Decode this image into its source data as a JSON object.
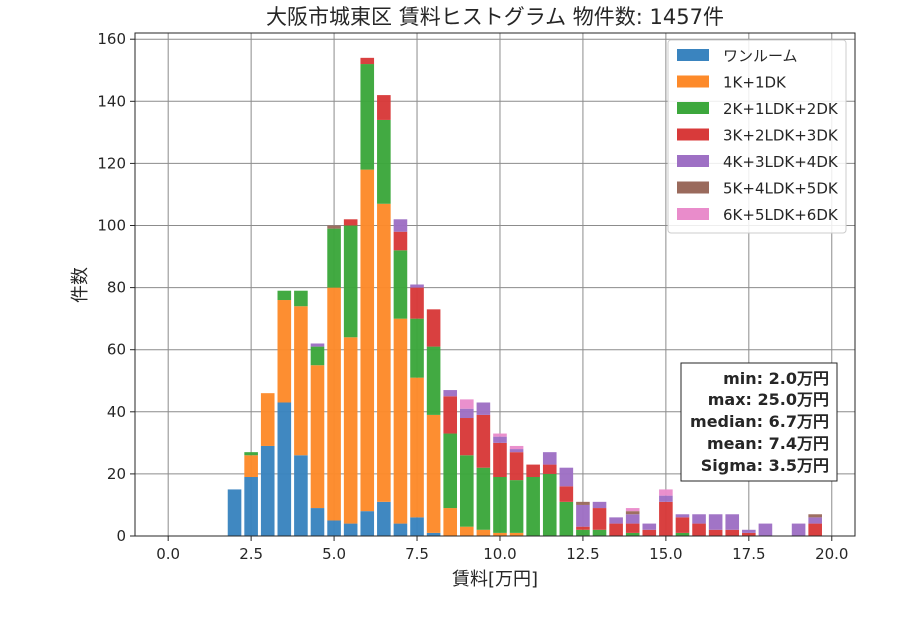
{
  "chart_data": {
    "type": "bar",
    "stacked": true,
    "title": "大阪市城東区 賃料ヒストグラム 物件数: 1457件",
    "xlabel": "賃料[万円]",
    "ylabel": "件数",
    "xlim": [
      -1.0,
      20.7
    ],
    "ylim": [
      0,
      162
    ],
    "xticks": [
      "0.0",
      "2.5",
      "5.0",
      "7.5",
      "10.0",
      "12.5",
      "15.0",
      "17.5",
      "20.0"
    ],
    "xtick_values": [
      0,
      2.5,
      5,
      7.5,
      10,
      12.5,
      15,
      17.5,
      20
    ],
    "yticks": [
      0,
      20,
      40,
      60,
      80,
      100,
      120,
      140,
      160
    ],
    "grid": true,
    "legend_position": "top-right",
    "bin_starts": [
      1.75,
      2.25,
      2.75,
      3.25,
      3.75,
      4.25,
      4.75,
      5.25,
      5.75,
      6.25,
      6.75,
      7.25,
      7.75,
      8.25,
      8.75,
      9.25,
      9.75,
      10.25,
      10.75,
      11.25,
      11.75,
      12.25,
      12.75,
      13.25,
      13.75,
      14.25,
      14.75,
      15.25,
      15.75,
      16.25,
      16.75,
      17.25,
      17.75,
      18.25,
      18.75,
      19.25
    ],
    "bin_width": 0.5,
    "series": [
      {
        "name": "ワンルーム",
        "color": "#3a84bf",
        "values": [
          15,
          19,
          29,
          43,
          26,
          9,
          5,
          4,
          8,
          11,
          4,
          6,
          1,
          0,
          0,
          0,
          0,
          0,
          0,
          0,
          0,
          0,
          0,
          0,
          0,
          0,
          0,
          0,
          0,
          0,
          0,
          0,
          0,
          0,
          0,
          0
        ]
      },
      {
        "name": "1K+1DK",
        "color": "#fd8a2a",
        "values": [
          0,
          7,
          17,
          33,
          48,
          46,
          75,
          60,
          110,
          96,
          66,
          45,
          38,
          9,
          3,
          2,
          1,
          1,
          0,
          0,
          0,
          0,
          0,
          0,
          0,
          0,
          0,
          0,
          0,
          0,
          0,
          0,
          0,
          0,
          0,
          0
        ]
      },
      {
        "name": "2K+1LDK+2DK",
        "color": "#3ca73c",
        "values": [
          0,
          1,
          0,
          3,
          5,
          6,
          19,
          36,
          34,
          27,
          22,
          19,
          22,
          24,
          23,
          20,
          18,
          17,
          19,
          20,
          11,
          2,
          2,
          0,
          1,
          0,
          0,
          1,
          0,
          0,
          0,
          0,
          0,
          0,
          0,
          0
        ]
      },
      {
        "name": "3K+2LDK+3DK",
        "color": "#d83a3a",
        "values": [
          0,
          0,
          0,
          0,
          0,
          0,
          0,
          2,
          2,
          8,
          6,
          10,
          12,
          12,
          12,
          17,
          11,
          9,
          4,
          3,
          5,
          1,
          7,
          4,
          3,
          2,
          11,
          5,
          4,
          2,
          2,
          1,
          0,
          0,
          0,
          4
        ]
      },
      {
        "name": "4K+3LDK+4DK",
        "color": "#9e70c4",
        "values": [
          0,
          0,
          0,
          0,
          0,
          1,
          0,
          0,
          0,
          0,
          4,
          1,
          0,
          2,
          3,
          4,
          2,
          1,
          0,
          4,
          6,
          7,
          2,
          2,
          3,
          2,
          2,
          1,
          3,
          5,
          5,
          1,
          4,
          0,
          4,
          2
        ]
      },
      {
        "name": "5K+4LDK+5DK",
        "color": "#9a6a5c",
        "values": [
          0,
          0,
          0,
          0,
          0,
          0,
          1,
          0,
          0,
          0,
          0,
          0,
          0,
          0,
          0,
          0,
          0,
          0,
          0,
          0,
          0,
          1,
          0,
          0,
          1,
          0,
          0,
          0,
          0,
          0,
          0,
          0,
          0,
          0,
          0,
          1
        ]
      },
      {
        "name": "6K+5LDK+6DK",
        "color": "#e98ccb",
        "values": [
          0,
          0,
          0,
          0,
          0,
          0,
          0,
          0,
          0,
          0,
          0,
          0,
          0,
          0,
          3,
          0,
          1,
          1,
          0,
          0,
          0,
          0,
          0,
          0,
          1,
          0,
          2,
          0,
          0,
          0,
          0,
          0,
          0,
          0,
          0,
          0
        ]
      }
    ],
    "stats": [
      "min: 2.0万円",
      "max: 25.0万円",
      "median: 6.7万円",
      "mean: 7.4万円",
      "Sigma: 3.5万円"
    ]
  }
}
